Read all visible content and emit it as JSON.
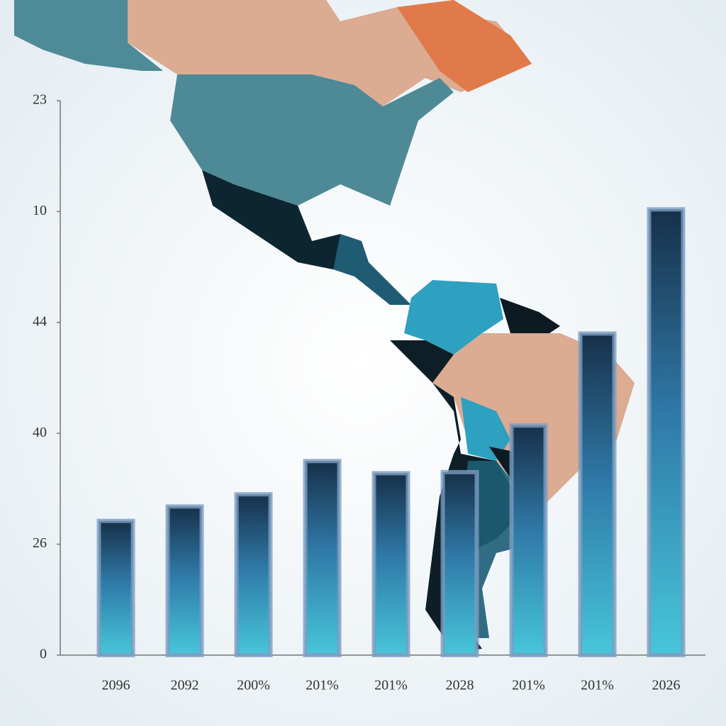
{
  "chart_data": {
    "type": "bar",
    "categories": [
      "2096",
      "2092",
      "200%",
      "201%",
      "201%",
      "2028",
      "201%",
      "201%",
      "2026"
    ],
    "values": [
      1.21,
      1.34,
      1.45,
      1.75,
      1.64,
      1.65,
      2.07,
      2.9,
      4.02
    ],
    "ylim": [
      0,
      5
    ],
    "yticks": [
      0,
      {
        "value": 1,
        "label": "26"
      },
      {
        "value": 2,
        "label": "40"
      },
      {
        "value": 3,
        "label": "44"
      },
      {
        "value": 4,
        "label": "10"
      },
      {
        "value": 5,
        "label": "23"
      }
    ],
    "grid": false
  }
}
